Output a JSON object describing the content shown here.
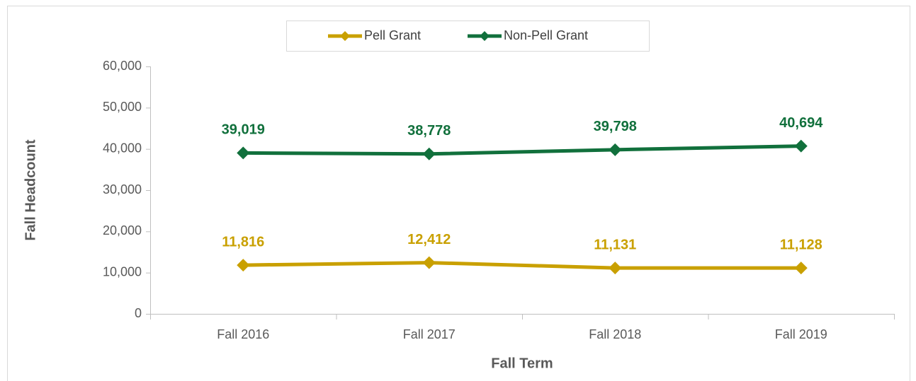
{
  "chart_data": {
    "type": "line",
    "x_label": "Fall Term",
    "y_label": "Fall Headcount",
    "categories": [
      "Fall 2016",
      "Fall 2017",
      "Fall 2018",
      "Fall 2019"
    ],
    "series": [
      {
        "name": "Pell Grant",
        "color": "#c9a000",
        "values": [
          11816,
          12412,
          11131,
          11128
        ],
        "value_labels": [
          "11,816",
          "12,412",
          "11,131",
          "11,128"
        ]
      },
      {
        "name": "Non-Pell Grant",
        "color": "#11703c",
        "values": [
          39019,
          38778,
          39798,
          40694
        ],
        "value_labels": [
          "39,019",
          "38,778",
          "39,798",
          "40,694"
        ]
      }
    ],
    "ylim": [
      0,
      60000
    ],
    "yticks": [
      0,
      {
        "value": 10000,
        "label": "10,000"
      },
      {
        "value": 20000,
        "label": "20,000"
      },
      {
        "value": 30000,
        "label": "30,000"
      },
      {
        "value": 40000,
        "label": "40,000"
      },
      {
        "value": 50000,
        "label": "50,000"
      },
      {
        "value": 60000,
        "label": "60,000"
      }
    ],
    "legend": "top",
    "grid": false
  }
}
